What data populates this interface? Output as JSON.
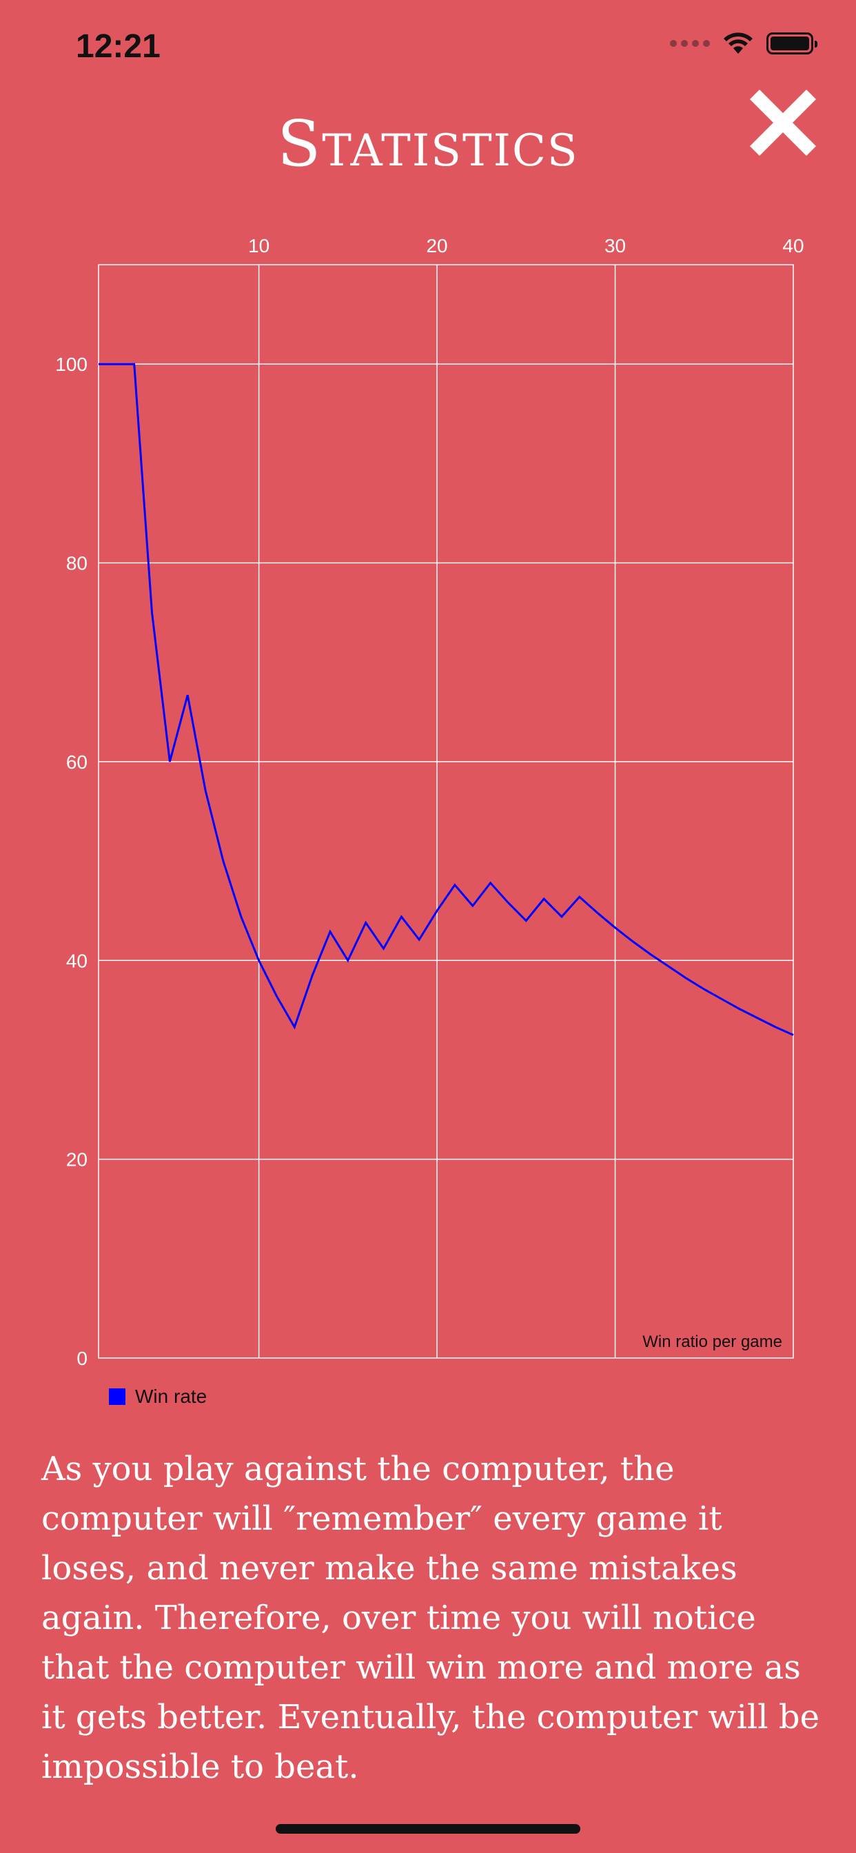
{
  "status_bar": {
    "time": "12:21",
    "icons": [
      "cellular-signal-icon",
      "wifi-icon",
      "battery-icon"
    ]
  },
  "header": {
    "title": "Statistics",
    "close_icon": "close-icon"
  },
  "colors": {
    "background": "#E0565F",
    "series_line": "#0000ff",
    "text": "#ffffff"
  },
  "chart_data": {
    "type": "line",
    "annotation": "Win ratio per game",
    "xlim": [
      1,
      40
    ],
    "ylim": [
      0,
      110
    ],
    "x_ticks": [
      10,
      20,
      30,
      40
    ],
    "y_ticks": [
      0,
      20,
      40,
      60,
      80,
      100
    ],
    "x_axis_position": "top",
    "grid": true,
    "legend_position": "bottom-left",
    "series": [
      {
        "name": "Win rate",
        "color": "#0000ff",
        "x": [
          1,
          2,
          3,
          4,
          5,
          6,
          7,
          8,
          9,
          10,
          11,
          12,
          13,
          14,
          15,
          16,
          17,
          18,
          19,
          20,
          21,
          22,
          23,
          24,
          25,
          26,
          27,
          28,
          29,
          30,
          31,
          32,
          33,
          34,
          35,
          36,
          37,
          38,
          39,
          40
        ],
        "values": [
          100,
          100,
          100,
          75,
          60,
          66.7,
          57.1,
          50,
          44.4,
          40,
          36.4,
          33.3,
          38.5,
          42.9,
          40,
          43.8,
          41.2,
          44.4,
          42.1,
          45,
          47.6,
          45.5,
          47.8,
          45.8,
          44,
          46.2,
          44.4,
          46.4,
          44.8,
          43.3,
          41.9,
          40.6,
          39.4,
          38.2,
          37.1,
          36.1,
          35.1,
          34.2,
          33.3,
          32.5
        ]
      }
    ]
  },
  "description": "As you play against the computer, the computer will ″remember″ every game it loses, and never make the same mistakes again. Therefore, over time you will notice that the computer will win more and more as it gets better. Eventually, the computer will be impossible to beat."
}
